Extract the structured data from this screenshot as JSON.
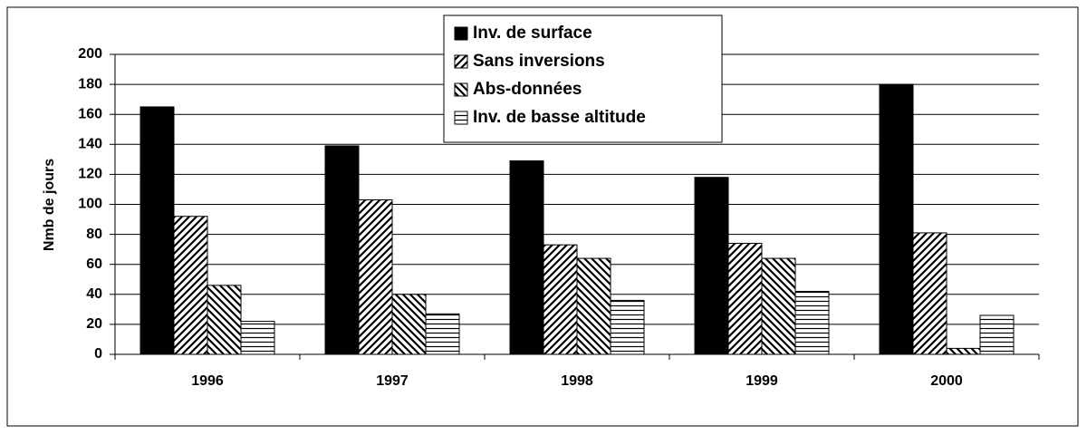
{
  "chart_data": {
    "type": "bar",
    "y_label": "Nmb de jours",
    "categories": [
      "1996",
      "1997",
      "1998",
      "1999",
      "2000"
    ],
    "series": [
      {
        "name": "Inv. de surface",
        "color": "#000000",
        "pattern": "solid",
        "values": [
          165,
          139,
          129,
          118,
          180
        ]
      },
      {
        "name": "Sans inversions",
        "color": "#000000",
        "pattern": "diagonal-up",
        "values": [
          92,
          103,
          73,
          74,
          81
        ]
      },
      {
        "name": "Abs-données",
        "color": "#000000",
        "pattern": "diagonal-down",
        "values": [
          46,
          40,
          64,
          64,
          4
        ]
      },
      {
        "name": "Inv. de basse altitude",
        "color": "#000000",
        "pattern": "horizontal",
        "values": [
          22,
          27,
          36,
          42,
          26
        ]
      }
    ],
    "ylim": [
      0,
      200
    ],
    "yticks": [
      0,
      20,
      40,
      60,
      80,
      100,
      120,
      140,
      160,
      180,
      200
    ],
    "grid": true,
    "legend": "top"
  }
}
